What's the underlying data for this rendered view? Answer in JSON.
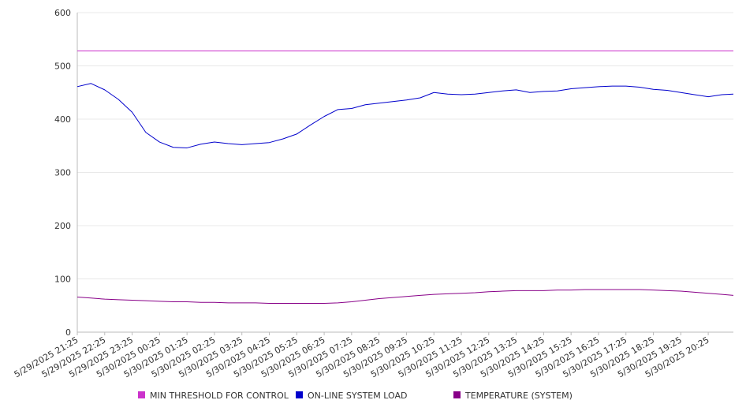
{
  "chart_data": {
    "type": "line",
    "title": "",
    "xlabel": "",
    "ylabel": "",
    "ylim": [
      0,
      600
    ],
    "yticks": [
      0,
      100,
      200,
      300,
      400,
      500,
      600
    ],
    "grid": true,
    "legend_placement": "bottom",
    "x_tick_labels": [
      "5/29/2025 21:25",
      "5/29/2025 22:25",
      "5/29/2025 23:25",
      "5/30/2025 00:25",
      "5/30/2025 01:25",
      "5/30/2025 02:25",
      "5/30/2025 03:25",
      "5/30/2025 04:25",
      "5/30/2025 05:25",
      "5/30/2025 06:25",
      "5/30/2025 07:25",
      "5/30/2025 08:25",
      "5/30/2025 09:25",
      "5/30/2025 10:25",
      "5/30/2025 11:25",
      "5/30/2025 12:25",
      "5/30/2025 13:25",
      "5/30/2025 14:25",
      "5/30/2025 15:25",
      "5/30/2025 16:25",
      "5/30/2025 17:25",
      "5/30/2025 18:25",
      "5/30/2025 19:25",
      "5/30/2025 20:25"
    ],
    "x": [
      "5/29/2025 21:25",
      "5/29/2025 21:55",
      "5/29/2025 22:25",
      "5/29/2025 22:55",
      "5/29/2025 23:25",
      "5/29/2025 23:55",
      "5/30/2025 00:25",
      "5/30/2025 00:55",
      "5/30/2025 01:25",
      "5/30/2025 01:55",
      "5/30/2025 02:25",
      "5/30/2025 02:55",
      "5/30/2025 03:25",
      "5/30/2025 03:55",
      "5/30/2025 04:25",
      "5/30/2025 04:55",
      "5/30/2025 05:25",
      "5/30/2025 05:55",
      "5/30/2025 06:25",
      "5/30/2025 06:55",
      "5/30/2025 07:25",
      "5/30/2025 07:55",
      "5/30/2025 08:25",
      "5/30/2025 08:55",
      "5/30/2025 09:25",
      "5/30/2025 09:55",
      "5/30/2025 10:25",
      "5/30/2025 10:55",
      "5/30/2025 11:25",
      "5/30/2025 11:55",
      "5/30/2025 12:25",
      "5/30/2025 12:55",
      "5/30/2025 13:25",
      "5/30/2025 13:55",
      "5/30/2025 14:25",
      "5/30/2025 14:55",
      "5/30/2025 15:25",
      "5/30/2025 15:55",
      "5/30/2025 16:25",
      "5/30/2025 16:55",
      "5/30/2025 17:25",
      "5/30/2025 17:55",
      "5/30/2025 18:25",
      "5/30/2025 18:55",
      "5/30/2025 19:25",
      "5/30/2025 19:55",
      "5/30/2025 20:25",
      "5/30/2025 20:55",
      "5/30/2025 21:20"
    ],
    "series": [
      {
        "name": "MIN THRESHOLD FOR CONTROL",
        "color": "#cc33cc",
        "values": [
          528,
          528,
          528,
          528,
          528,
          528,
          528,
          528,
          528,
          528,
          528,
          528,
          528,
          528,
          528,
          528,
          528,
          528,
          528,
          528,
          528,
          528,
          528,
          528,
          528,
          528,
          528,
          528,
          528,
          528,
          528,
          528,
          528,
          528,
          528,
          528,
          528,
          528,
          528,
          528,
          528,
          528,
          528,
          528,
          528,
          528,
          528,
          528,
          528
        ]
      },
      {
        "name": "ON-LINE SYSTEM LOAD",
        "color": "#0000cc",
        "values": [
          461,
          467,
          455,
          437,
          413,
          375,
          357,
          347,
          346,
          353,
          357,
          354,
          352,
          354,
          356,
          363,
          372,
          389,
          405,
          418,
          420,
          427,
          430,
          433,
          436,
          440,
          450,
          447,
          446,
          447,
          450,
          453,
          455,
          450,
          452,
          453,
          457,
          459,
          461,
          462,
          462,
          460,
          456,
          454,
          450,
          446,
          442,
          446,
          447
        ]
      },
      {
        "name": "TEMPERATURE (SYSTEM)",
        "color": "#880088",
        "values": [
          66,
          64,
          62,
          61,
          60,
          59,
          58,
          57,
          57,
          56,
          56,
          55,
          55,
          55,
          54,
          54,
          54,
          54,
          54,
          55,
          57,
          60,
          63,
          65,
          67,
          69,
          71,
          72,
          73,
          74,
          76,
          77,
          78,
          78,
          78,
          79,
          79,
          80,
          80,
          80,
          80,
          80,
          79,
          78,
          77,
          75,
          73,
          71,
          69
        ]
      }
    ]
  }
}
